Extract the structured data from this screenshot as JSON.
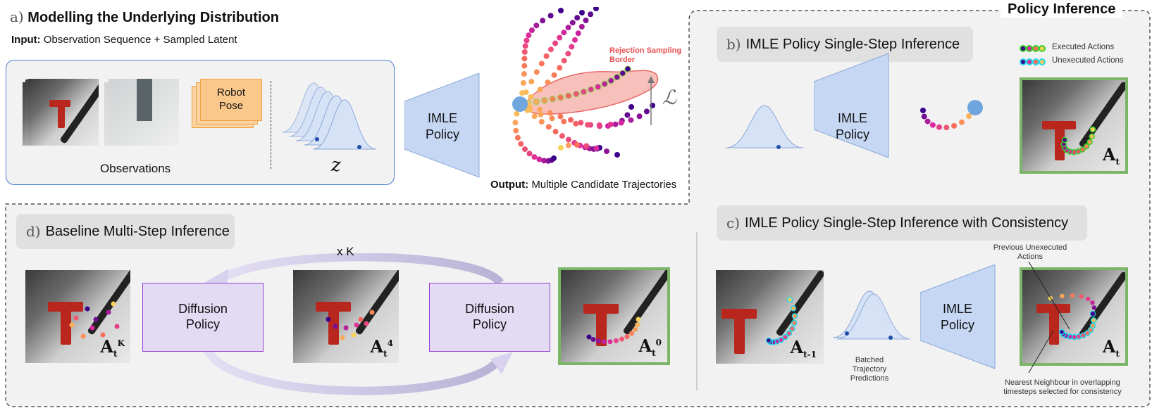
{
  "panel_a": {
    "letter": "a)",
    "title": "Modelling the Underlying Distribution",
    "input_bold": "Input:",
    "input_text": "Observation Sequence + Sampled Latent",
    "observations_label": "Observations",
    "robot_pose_label": "Robot Pose",
    "latent_symbol": "z",
    "model_label": "IMLE Policy",
    "rejection_label": "Rejection Sampling Border",
    "loss_symbol": "ℒ",
    "output_bold": "Output:",
    "output_text": "Multiple Candidate Trajectories"
  },
  "policy_inference": {
    "title": "Policy Inference"
  },
  "panel_b": {
    "letter": "b)",
    "title": "IMLE Policy Single-Step Inference",
    "model_label": "IMLE Policy",
    "legend_executed": "Executed Actions",
    "legend_unexecuted": "Unexecuted Actions",
    "action_label": "A",
    "action_sub": "t"
  },
  "panel_c": {
    "letter": "c)",
    "title": "IMLE Policy Single-Step Inference with Consistency",
    "model_label": "IMLE Policy",
    "batched_label": "Batched Trajectory Predictions",
    "prev_label": "Previous Unexecuted Actions",
    "nn_label": "Nearest Neighbour in overlapping timesteps selected for consistency",
    "action_prev": "A",
    "action_prev_sub": "t-1",
    "action_label": "A",
    "action_sub": "t"
  },
  "panel_d": {
    "letter": "d)",
    "title": "Baseline Multi-Step Inference",
    "loop_label": "x K",
    "diffusion_label_1": "Diffusion Policy",
    "diffusion_label_2": "Diffusion Policy",
    "a_k": "A",
    "a_k_sub": "t",
    "a_k_sup": "K",
    "a_4": "A",
    "a_4_sub": "t",
    "a_4_sup": "4",
    "a_0": "A",
    "a_0_sub": "t",
    "a_0_sup": "0"
  },
  "colors": {
    "panel_a_border": "#4a7fd4",
    "trapezoid_fill": "#c6d7f4",
    "diffusion_fill": "#e2dbf3",
    "diffusion_border": "#9a3fd6",
    "frame_green": "#7bb567",
    "rejection_red": "#e4504f",
    "start_blue": "#6fa6dd"
  }
}
